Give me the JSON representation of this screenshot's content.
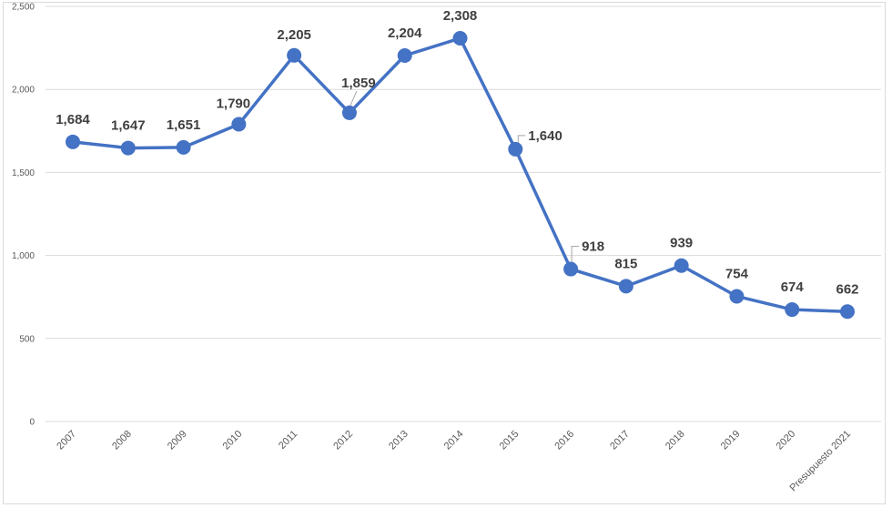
{
  "chart_data": {
    "type": "line",
    "title": "",
    "xlabel": "",
    "ylabel": "",
    "categories": [
      "2007",
      "2008",
      "2009",
      "2010",
      "2011",
      "2012",
      "2013",
      "2014",
      "2015",
      "2016",
      "2017",
      "2018",
      "2019",
      "2020",
      "Presupuesto 2021"
    ],
    "series": [
      {
        "values": [
          1684,
          1647,
          1651,
          1790,
          2205,
          1859,
          2204,
          2308,
          1640,
          918,
          815,
          939,
          754,
          674,
          662
        ]
      }
    ],
    "data_labels": [
      "1,684",
      "1,647",
      "1,651",
      "1,790",
      "2,205",
      "1,859",
      "2,204",
      "2,308",
      "1,640",
      "918",
      "815",
      "939",
      "754",
      "674",
      "662"
    ],
    "yticks": [
      0,
      500,
      1000,
      1500,
      2000,
      2500
    ],
    "ytick_labels": [
      "0",
      "500",
      "1,000",
      "1,500",
      "2,000",
      "2,500"
    ],
    "ylim": [
      0,
      2500
    ],
    "grid": true,
    "legend": "none",
    "line_color": "#4472c4"
  }
}
